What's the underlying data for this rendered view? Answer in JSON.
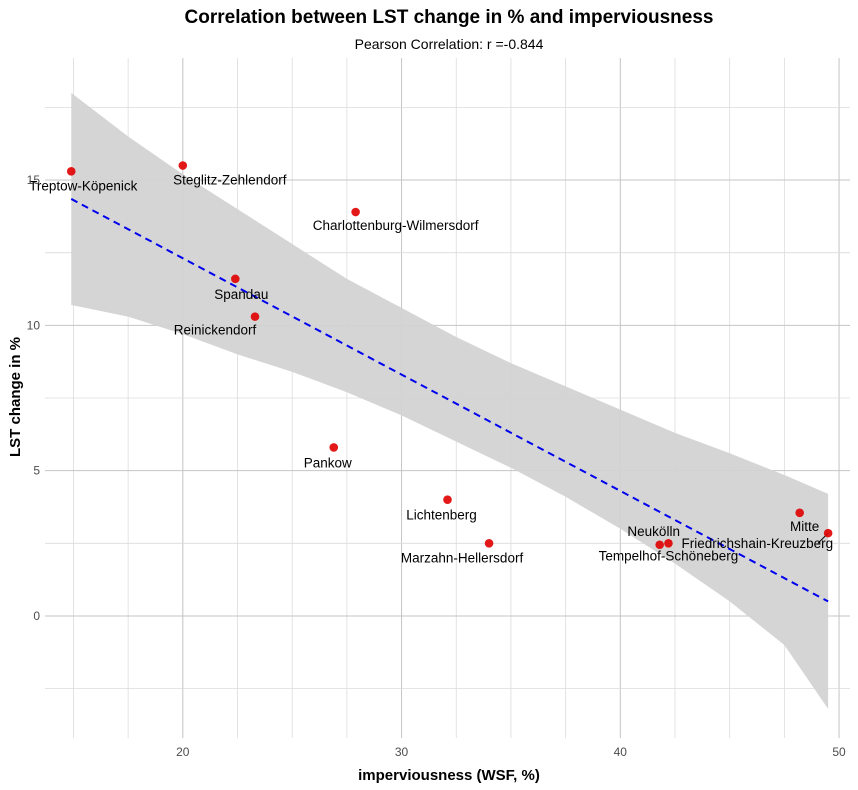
{
  "chart_data": {
    "type": "scatter",
    "title": "Correlation between LST change in % and imperviousness",
    "subtitle": "Pearson Correlation: r =-0.844",
    "xlabel": "imperviousness (WSF, %)",
    "ylabel": "LST change in %",
    "xlim": [
      13.7,
      50.5
    ],
    "ylim": [
      -4.2,
      19.2
    ],
    "x_ticks": [
      20,
      30,
      40,
      50
    ],
    "y_ticks": [
      0,
      5,
      10,
      15
    ],
    "grid": true,
    "point_color": "#e00000",
    "trend_color": "#0000ee",
    "band_color": "#d3d3d3",
    "points": [
      {
        "name": "Treptow-Köpenick",
        "x": 14.9,
        "y": 15.3
      },
      {
        "name": "Steglitz-Zehlendorf",
        "x": 20.0,
        "y": 15.5
      },
      {
        "name": "Charlottenburg-Wilmersdorf",
        "x": 27.9,
        "y": 13.9
      },
      {
        "name": "Spandau",
        "x": 22.4,
        "y": 11.6
      },
      {
        "name": "Reinickendorf",
        "x": 23.3,
        "y": 10.3
      },
      {
        "name": "Pankow",
        "x": 26.9,
        "y": 5.8
      },
      {
        "name": "Lichtenberg",
        "x": 32.1,
        "y": 4.0
      },
      {
        "name": "Marzahn-Hellersdorf",
        "x": 34.0,
        "y": 2.5
      },
      {
        "name": "Neukölln",
        "x": 41.8,
        "y": 2.45
      },
      {
        "name": "Tempelhof-Schöneberg",
        "x": 42.2,
        "y": 2.5
      },
      {
        "name": "Mitte",
        "x": 48.2,
        "y": 3.55
      },
      {
        "name": "Friedrichshain-Kreuzberg",
        "x": 49.5,
        "y": 2.85
      }
    ],
    "trend": {
      "x": [
        14.9,
        49.5
      ],
      "y": [
        14.35,
        0.5
      ]
    },
    "confidence_band": {
      "x": [
        14.9,
        17.5,
        20,
        22.5,
        25,
        27.5,
        30,
        32.5,
        35,
        37.5,
        40,
        42.5,
        45,
        47.5,
        49.5
      ],
      "upper": [
        18.0,
        16.5,
        15.2,
        14.0,
        12.8,
        11.6,
        10.6,
        9.6,
        8.7,
        7.9,
        7.1,
        6.3,
        5.6,
        4.85,
        4.2
      ],
      "lower": [
        10.7,
        10.3,
        9.7,
        9.0,
        8.4,
        7.7,
        6.9,
        6.0,
        5.1,
        4.1,
        3.0,
        1.8,
        0.5,
        -1.0,
        -3.2
      ]
    }
  }
}
